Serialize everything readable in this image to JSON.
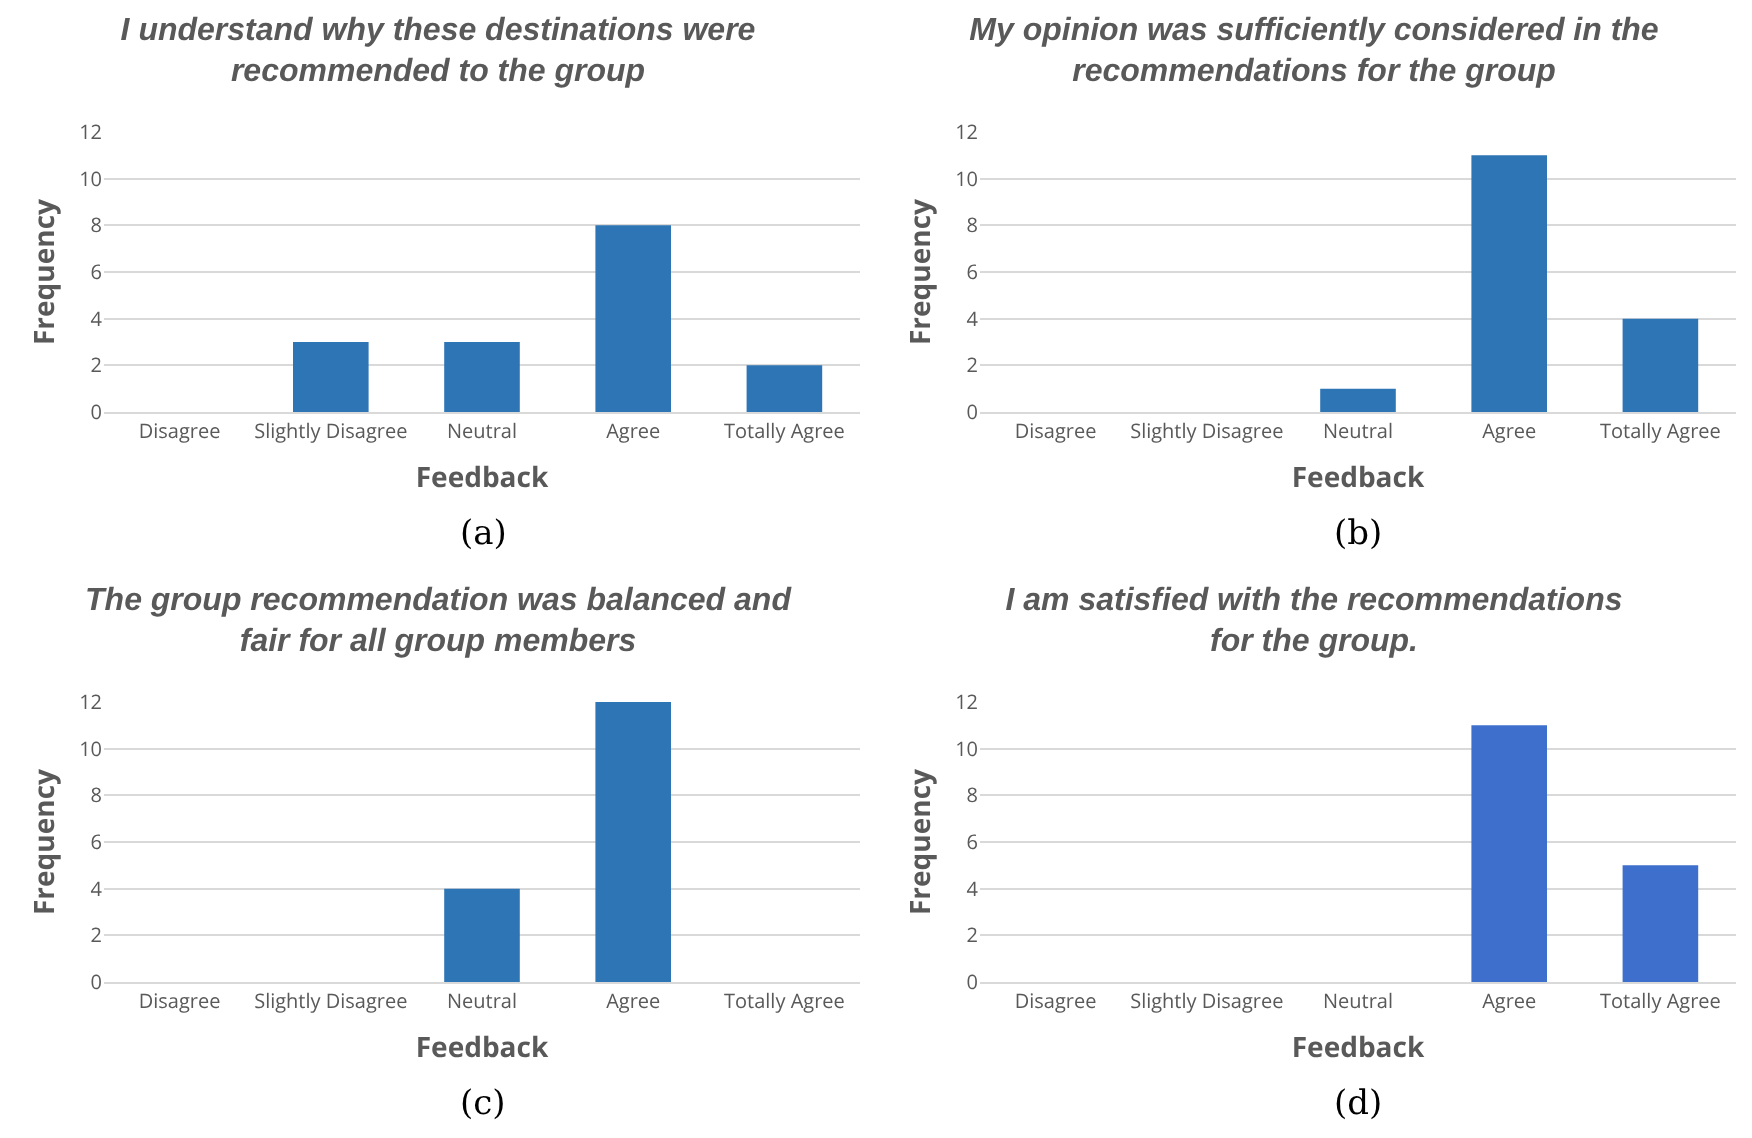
{
  "chart_data": [
    {
      "type": "bar",
      "title": "I understand why these destinations were recommended to the group",
      "xlabel": "Feedback",
      "ylabel": "Frequency",
      "categories": [
        "Disagree",
        "Slightly Disagree",
        "Neutral",
        "Agree",
        "Totally Agree"
      ],
      "values": [
        0,
        3,
        3,
        8,
        2
      ],
      "color": "#2e75b6",
      "ylim": [
        0,
        12
      ],
      "yticks": [
        0,
        2,
        4,
        6,
        8,
        10,
        12
      ],
      "grid": "y",
      "annotations": [
        "(a)"
      ]
    },
    {
      "type": "bar",
      "title": "My opinion was sufficiently considered in the recommendations for the group",
      "xlabel": "Feedback",
      "ylabel": "Frequency",
      "categories": [
        "Disagree",
        "Slightly Disagree",
        "Neutral",
        "Agree",
        "Totally Agree"
      ],
      "values": [
        0,
        0,
        1,
        11,
        4
      ],
      "color": "#2e75b6",
      "ylim": [
        0,
        12
      ],
      "yticks": [
        0,
        2,
        4,
        6,
        8,
        10,
        12
      ],
      "grid": "y",
      "annotations": [
        "(b)"
      ]
    },
    {
      "type": "bar",
      "title": "The group recommendation was balanced and fair for all group members",
      "xlabel": "Feedback",
      "ylabel": "Frequency",
      "categories": [
        "Disagree",
        "Slightly Disagree",
        "Neutral",
        "Agree",
        "Totally Agree"
      ],
      "values": [
        0,
        0,
        4,
        12,
        0
      ],
      "color": "#2e75b6",
      "ylim": [
        0,
        12
      ],
      "yticks": [
        0,
        2,
        4,
        6,
        8,
        10,
        12
      ],
      "grid": "y",
      "annotations": [
        "(c)"
      ]
    },
    {
      "type": "bar",
      "title": "I am satisfied with the recommendations for the group.",
      "xlabel": "Feedback",
      "ylabel": "Frequency",
      "categories": [
        "Disagree",
        "Slightly Disagree",
        "Neutral",
        "Agree",
        "Totally Agree"
      ],
      "values": [
        0,
        0,
        0,
        11,
        5
      ],
      "color": "#3f6fcc",
      "ylim": [
        0,
        12
      ],
      "yticks": [
        0,
        2,
        4,
        6,
        8,
        10,
        12
      ],
      "grid": "y",
      "annotations": [
        "(d)"
      ]
    }
  ]
}
